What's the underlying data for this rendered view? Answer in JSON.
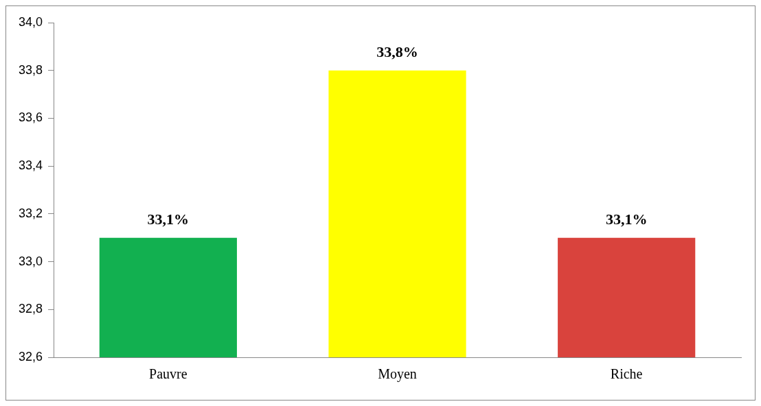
{
  "chart_data": {
    "type": "bar",
    "categories": [
      "Pauvre",
      "Moyen",
      "Riche"
    ],
    "values": [
      33.1,
      33.8,
      33.1
    ],
    "colors": [
      "#12b050",
      "#ffff00",
      "#d9433d"
    ],
    "value_labels": [
      "33,1%",
      "33,8%",
      "33,1%"
    ],
    "ylim": [
      32.6,
      34.0
    ],
    "yticks": [
      {
        "value": 32.6,
        "label": "32,6"
      },
      {
        "value": 32.8,
        "label": "32,8"
      },
      {
        "value": 33.0,
        "label": "33,0"
      },
      {
        "value": 33.2,
        "label": "33,2"
      },
      {
        "value": 33.4,
        "label": "33,4"
      },
      {
        "value": 33.6,
        "label": "33,6"
      },
      {
        "value": 33.8,
        "label": "33,8"
      },
      {
        "value": 34.0,
        "label": "34,0"
      }
    ],
    "grid": false,
    "legend": false
  }
}
